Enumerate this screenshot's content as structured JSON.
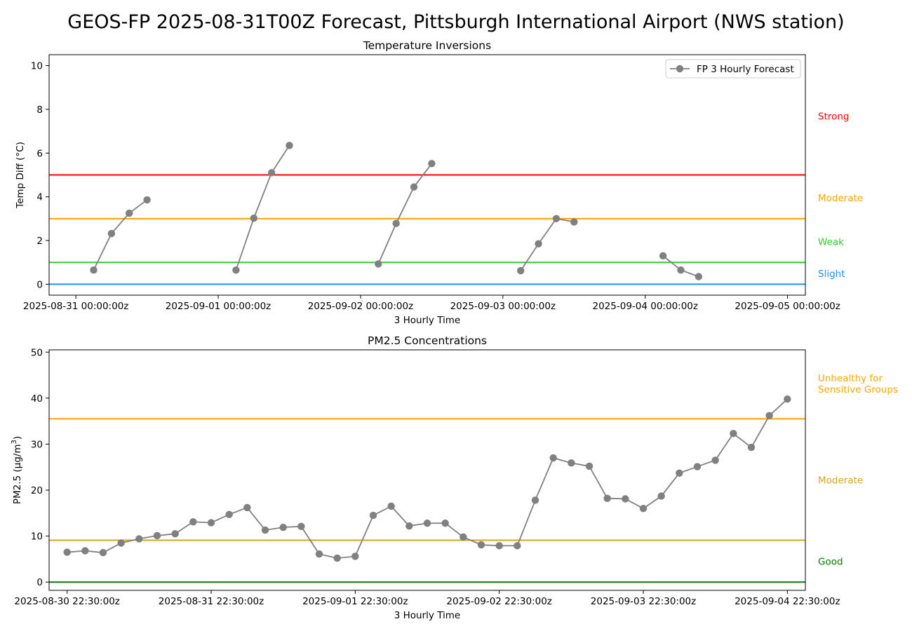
{
  "figure": {
    "title": "GEOS-FP 2025-08-31T00Z Forecast, Pittsburgh International Airport (NWS station)"
  },
  "chart_data": [
    {
      "type": "line",
      "title": "Temperature Inversions",
      "xlabel": "3 Hourly Time",
      "ylabel": "Temp Diff (°C)",
      "ylim": [
        -0.5,
        10.5
      ],
      "yticks": [
        0,
        2,
        4,
        6,
        8,
        10
      ],
      "x_unit": "days since 2025-08-31 00:00:00z",
      "xlim": [
        -0.188,
        5.125
      ],
      "xticks": [
        {
          "v": 0,
          "label": "2025-08-31 00:00:00z"
        },
        {
          "v": 1,
          "label": "2025-09-01 00:00:00z"
        },
        {
          "v": 2,
          "label": "2025-09-02 00:00:00z"
        },
        {
          "v": 3,
          "label": "2025-09-03 00:00:00z"
        },
        {
          "v": 4,
          "label": "2025-09-04 00:00:00z"
        },
        {
          "v": 5,
          "label": "2025-09-05 00:00:00z"
        }
      ],
      "legend": {
        "placement": "top-right",
        "entries": [
          "FP 3 Hourly Forecast"
        ]
      },
      "series": [
        {
          "name": "FP 3 Hourly Forecast",
          "color": "#808080",
          "segments": [
            [
              [
                0.125,
                0.65
              ],
              [
                0.25,
                2.32
              ],
              [
                0.375,
                3.25
              ],
              [
                0.5,
                3.86
              ]
            ],
            [
              [
                1.125,
                0.65
              ],
              [
                1.25,
                3.02
              ],
              [
                1.375,
                5.1
              ],
              [
                1.5,
                6.35
              ]
            ],
            [
              [
                2.125,
                0.93
              ],
              [
                2.25,
                2.78
              ],
              [
                2.375,
                4.45
              ],
              [
                2.5,
                5.52
              ]
            ],
            [
              [
                3.125,
                0.62
              ],
              [
                3.25,
                1.85
              ],
              [
                3.375,
                3.0
              ],
              [
                3.5,
                2.85
              ]
            ],
            [
              [
                4.125,
                1.3
              ],
              [
                4.25,
                0.65
              ],
              [
                4.375,
                0.35
              ]
            ]
          ]
        }
      ],
      "thresholds": [
        {
          "value": 5,
          "color": "#ff0000",
          "label": "Strong",
          "label_value": 7.7
        },
        {
          "value": 3,
          "color": "#ffa500",
          "label": "Moderate",
          "label_value": 3.95
        },
        {
          "value": 1,
          "color": "#32cd32",
          "label": "Weak",
          "label_value": 1.95
        },
        {
          "value": 0,
          "color": "#1e90ff",
          "label": "Slight",
          "label_value": 0.5
        }
      ]
    },
    {
      "type": "line",
      "title": "PM2.5 Concentrations",
      "xlabel": "3 Hourly Time",
      "ylabel": "PM2.5 (µg/m³)",
      "ylabel_main": "PM2.5 (µg/m",
      "ylabel_sup": "3",
      "ylabel_tail": ")",
      "ylim": [
        -1.8,
        50.5
      ],
      "yticks": [
        0,
        10,
        20,
        30,
        40,
        50
      ],
      "x_unit": "days since 2025-08-30 22:30:00z",
      "xlim": [
        -0.125,
        5.125
      ],
      "xticks": [
        {
          "v": 0,
          "label": "2025-08-30 22:30:00z"
        },
        {
          "v": 1,
          "label": "2025-08-31 22:30:00z"
        },
        {
          "v": 2,
          "label": "2025-09-01 22:30:00z"
        },
        {
          "v": 3,
          "label": "2025-09-02 22:30:00z"
        },
        {
          "v": 4,
          "label": "2025-09-03 22:30:00z"
        },
        {
          "v": 5,
          "label": "2025-09-04 22:30:00z"
        }
      ],
      "series": [
        {
          "name": "",
          "color": "#808080",
          "x_step": 0.125,
          "values": [
            6.5,
            6.8,
            6.4,
            8.5,
            9.4,
            10.1,
            10.5,
            13.1,
            12.9,
            14.7,
            16.2,
            11.3,
            11.9,
            12.1,
            6.1,
            5.2,
            5.6,
            14.5,
            16.5,
            12.2,
            12.8,
            12.8,
            9.8,
            8.1,
            7.9,
            7.9,
            17.8,
            27.0,
            25.9,
            25.2,
            18.2,
            18.1,
            16.0,
            18.7,
            23.7,
            25.1,
            26.5,
            32.3,
            29.3,
            36.2,
            39.8
          ]
        }
      ],
      "thresholds": [
        {
          "value": 35.5,
          "color": "#ffa500",
          "label": "Unhealthy for Sensitive Groups",
          "label_lines": [
            "Unhealthy for",
            "Sensitive Groups"
          ],
          "label_value": 43.2
        },
        {
          "value": 9.1,
          "color": "#daa520",
          "label": "Moderate",
          "label_value": 22.2
        },
        {
          "value": 0,
          "color": "#008000",
          "label": "Good",
          "label_value": 4.5
        }
      ]
    }
  ]
}
